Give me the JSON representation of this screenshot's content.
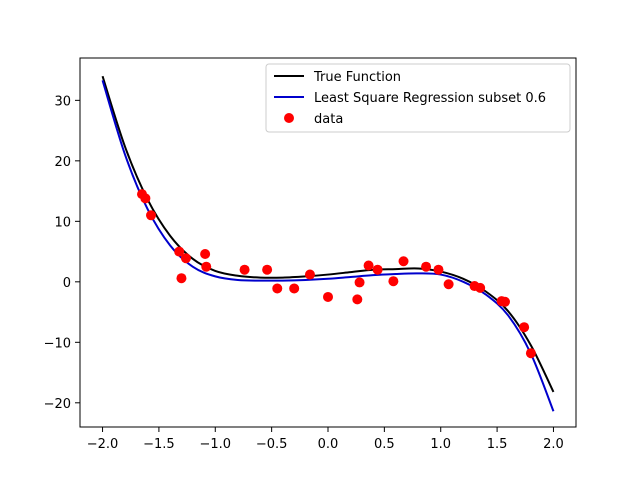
{
  "chart_data": {
    "type": "line",
    "title": "",
    "xlabel": "",
    "ylabel": "",
    "xlim": [
      -2.2,
      2.2
    ],
    "ylim": [
      -24,
      37
    ],
    "xticks": [
      -2.0,
      -1.5,
      -1.0,
      -0.5,
      0.0,
      0.5,
      1.0,
      1.5,
      2.0
    ],
    "xtick_labels": [
      "−2.0",
      "−1.5",
      "−1.0",
      "−0.5",
      "0.0",
      "0.5",
      "1.0",
      "1.5",
      "2.0"
    ],
    "yticks": [
      -20,
      -10,
      0,
      10,
      20,
      30
    ],
    "ytick_labels": [
      "−20",
      "−10",
      "0",
      "10",
      "20",
      "30"
    ],
    "grid": false,
    "legend_position": "top-right",
    "series": [
      {
        "name": "True Function",
        "kind": "line",
        "color": "#000000",
        "x": [
          -2.0,
          -1.8,
          -1.6,
          -1.4,
          -1.2,
          -1.0,
          -0.8,
          -0.6,
          -0.4,
          -0.2,
          0.0,
          0.2,
          0.4,
          0.6,
          0.8,
          1.0,
          1.2,
          1.4,
          1.6,
          1.8,
          2.0
        ],
        "y": [
          34.0,
          22.3,
          13.6,
          7.6,
          3.8,
          1.8,
          1.0,
          0.7,
          0.7,
          0.9,
          1.2,
          1.6,
          2.0,
          2.1,
          2.2,
          1.7,
          0.5,
          -1.6,
          -4.9,
          -10.5,
          -18.2
        ]
      },
      {
        "name": "Least Square Regression subset 0.6",
        "kind": "line",
        "color": "#0000cc",
        "x": [
          -2.0,
          -1.8,
          -1.6,
          -1.4,
          -1.2,
          -1.0,
          -0.8,
          -0.6,
          -0.4,
          -0.2,
          0.0,
          0.2,
          0.4,
          0.6,
          0.8,
          1.0,
          1.2,
          1.4,
          1.6,
          1.8,
          2.0
        ],
        "y": [
          33.3,
          21.0,
          12.0,
          6.0,
          2.5,
          0.9,
          0.3,
          0.2,
          0.2,
          0.3,
          0.5,
          0.8,
          1.1,
          1.3,
          1.4,
          1.2,
          0.0,
          -2.1,
          -5.6,
          -11.9,
          -21.4
        ]
      },
      {
        "name": "data",
        "kind": "scatter",
        "color": "#ff0000",
        "x": [
          -1.65,
          -1.62,
          -1.57,
          -1.32,
          -1.3,
          -1.26,
          -1.09,
          -1.08,
          -0.74,
          -0.54,
          -0.45,
          -0.3,
          -0.16,
          0.0,
          0.26,
          0.28,
          0.36,
          0.44,
          0.58,
          0.67,
          0.87,
          0.98,
          1.07,
          1.3,
          1.35,
          1.54,
          1.57,
          1.74,
          1.8
        ],
        "y": [
          14.5,
          13.8,
          11.0,
          5.0,
          0.6,
          3.9,
          4.6,
          2.5,
          2.0,
          2.0,
          -1.1,
          -1.1,
          1.2,
          -2.5,
          -2.9,
          -0.1,
          2.7,
          2.0,
          0.1,
          3.4,
          2.5,
          2.0,
          -0.4,
          -0.7,
          -1.0,
          -3.2,
          -3.3,
          -7.5,
          -11.8
        ]
      }
    ]
  }
}
